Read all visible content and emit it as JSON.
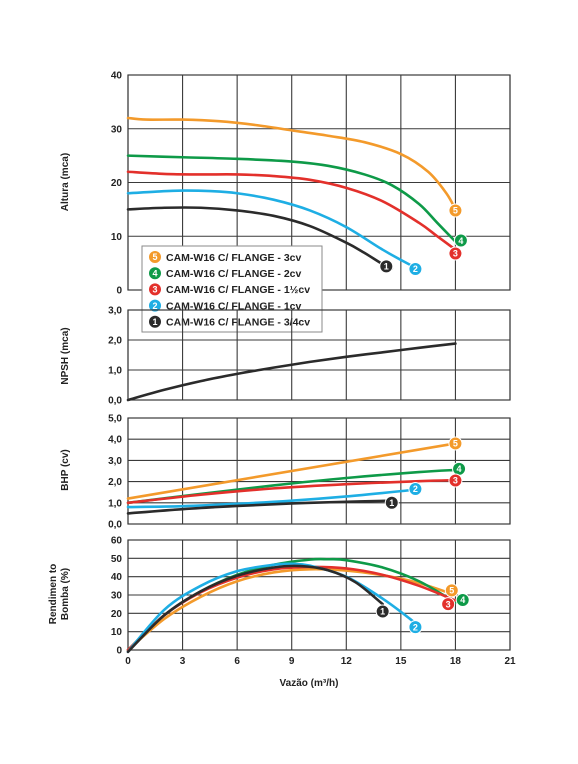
{
  "chart_data": [
    {
      "type": "line",
      "id": "altura",
      "ylabel": "Altura (mca)",
      "xlim": [
        0,
        21
      ],
      "ylim": [
        0,
        40
      ],
      "xticks": [
        0,
        3,
        6,
        9,
        12,
        15,
        18,
        21
      ],
      "yticks": [
        0,
        10,
        20,
        30,
        40
      ],
      "ytick_labels": [
        "0",
        "10",
        "20",
        "30",
        "40"
      ],
      "legend": {
        "placement": "bottom-left",
        "entries": [
          {
            "badge": "5",
            "label": "CAM-W16 C/ FLANGE - 3cv"
          },
          {
            "badge": "4",
            "label": "CAM-W16 C/ FLANGE - 2cv"
          },
          {
            "badge": "3",
            "label": "CAM-W16 C/ FLANGE - 1½cv"
          },
          {
            "badge": "2",
            "label": "CAM-W16 C/ FLANGE - 1cv"
          },
          {
            "badge": "1",
            "label": "CAM-W16 C/ FLANGE - 3/4cv"
          }
        ]
      },
      "series": [
        {
          "badge": "5",
          "color": "#F39A2B",
          "x": [
            0,
            1,
            3,
            5,
            7,
            9,
            11,
            13,
            15,
            16.5,
            17.5,
            18
          ],
          "y": [
            32,
            31.7,
            31.7,
            31.4,
            30.7,
            29.7,
            28.7,
            27.5,
            25.3,
            22,
            18,
            15
          ],
          "label_at": [
            18,
            14.8
          ]
        },
        {
          "badge": "4",
          "color": "#0E9A48",
          "x": [
            0,
            3,
            6,
            9,
            11,
            13,
            14.5,
            16,
            17,
            18
          ],
          "y": [
            25,
            24.7,
            24.4,
            23.9,
            23.1,
            21.5,
            19.5,
            16,
            12.5,
            9
          ],
          "label_at": [
            18.3,
            9.2
          ]
        },
        {
          "badge": "3",
          "color": "#E3302B",
          "x": [
            0,
            2,
            4,
            6,
            8,
            10,
            12,
            14,
            16,
            17,
            18
          ],
          "y": [
            22,
            21.6,
            21.5,
            21.5,
            21.2,
            20.5,
            19,
            16.5,
            12.5,
            10,
            7.5
          ],
          "label_at": [
            18,
            6.8
          ]
        },
        {
          "badge": "2",
          "color": "#1EAEE4",
          "x": [
            0,
            1.5,
            3,
            4.5,
            6,
            8,
            10,
            12,
            14,
            15.5,
            16
          ],
          "y": [
            18,
            18.3,
            18.5,
            18.4,
            18,
            16.8,
            14.8,
            11.7,
            7.5,
            4.7,
            4
          ],
          "label_at": [
            15.8,
            3.9
          ]
        },
        {
          "badge": "1",
          "color": "#2B2B2B",
          "x": [
            0,
            2,
            4,
            6,
            8,
            10,
            12,
            13,
            14,
            14.5
          ],
          "y": [
            15,
            15.3,
            15.3,
            14.8,
            13.8,
            11.9,
            8.8,
            6.9,
            4.8,
            4
          ],
          "label_at": [
            14.2,
            4.4
          ]
        }
      ]
    },
    {
      "type": "line",
      "id": "npsh",
      "ylabel": "NPSH (mca)",
      "xlim": [
        0,
        21
      ],
      "ylim": [
        0,
        3
      ],
      "xticks": [
        0,
        3,
        6,
        9,
        12,
        15,
        18,
        21
      ],
      "yticks": [
        0,
        1,
        2,
        3
      ],
      "ytick_labels": [
        "0,0",
        "1,0",
        "2,0",
        "3,0"
      ],
      "series": [
        {
          "color": "#2B2B2B",
          "x": [
            0,
            2,
            4,
            6,
            8,
            10,
            12,
            14,
            16,
            18
          ],
          "y": [
            0,
            0.34,
            0.63,
            0.87,
            1.08,
            1.27,
            1.44,
            1.59,
            1.74,
            1.88
          ]
        }
      ]
    },
    {
      "type": "line",
      "id": "bhp",
      "ylabel": "BHP (cv)",
      "xlim": [
        0,
        21
      ],
      "ylim": [
        0,
        5
      ],
      "xticks": [
        0,
        3,
        6,
        9,
        12,
        15,
        18,
        21
      ],
      "yticks": [
        0,
        1,
        2,
        3,
        4,
        5
      ],
      "ytick_labels": [
        "0,0",
        "1,0",
        "2,0",
        "3,0",
        "4,0",
        "5,0"
      ],
      "series": [
        {
          "badge": "5",
          "color": "#F39A2B",
          "x": [
            0,
            18
          ],
          "y": [
            1.2,
            3.8
          ],
          "label_at": [
            18,
            3.8
          ]
        },
        {
          "badge": "4",
          "color": "#0E9A48",
          "x": [
            0,
            4,
            8,
            12,
            16,
            18
          ],
          "y": [
            1.0,
            1.42,
            1.82,
            2.17,
            2.45,
            2.55
          ],
          "label_at": [
            18.2,
            2.6
          ]
        },
        {
          "badge": "3",
          "color": "#E3302B",
          "x": [
            0,
            4,
            8,
            12,
            16,
            18
          ],
          "y": [
            1.0,
            1.38,
            1.68,
            1.88,
            2.02,
            2.07
          ],
          "label_at": [
            18,
            2.05
          ]
        },
        {
          "badge": "2",
          "color": "#1EAEE4",
          "x": [
            0,
            3,
            6,
            9,
            12,
            15,
            16
          ],
          "y": [
            0.8,
            0.84,
            0.95,
            1.1,
            1.3,
            1.55,
            1.65
          ],
          "label_at": [
            15.8,
            1.65
          ]
        },
        {
          "badge": "1",
          "color": "#2B2B2B",
          "x": [
            0,
            3,
            6,
            9,
            12,
            14.5
          ],
          "y": [
            0.5,
            0.7,
            0.85,
            0.97,
            1.05,
            1.1
          ],
          "label_at": [
            14.5,
            1.0
          ]
        }
      ]
    },
    {
      "type": "line",
      "id": "rendimento",
      "ylabel": "Rendimen to Bomba (%)",
      "xlabel": "Vazão (m³/h)",
      "xlim": [
        0,
        21
      ],
      "ylim": [
        0,
        60
      ],
      "xticks": [
        0,
        3,
        6,
        9,
        12,
        15,
        18,
        21
      ],
      "xtick_labels": [
        "0",
        "3",
        "6",
        "9",
        "12",
        "15",
        "18",
        "21"
      ],
      "yticks": [
        0,
        10,
        20,
        30,
        40,
        50,
        60
      ],
      "ytick_labels": [
        "0",
        "10",
        "20",
        "30",
        "40",
        "50",
        "60"
      ],
      "series": [
        {
          "badge": "5",
          "color": "#F39A2B",
          "x": [
            0,
            2,
            4,
            6,
            8,
            10,
            12,
            14,
            16,
            18
          ],
          "y": [
            0,
            17,
            29,
            37.5,
            42.3,
            44,
            43.3,
            40.8,
            36.5,
            30
          ],
          "label_at": [
            17.8,
            32.5
          ]
        },
        {
          "badge": "4",
          "color": "#0E9A48",
          "x": [
            0,
            2,
            4,
            6,
            8,
            10,
            11,
            12,
            14,
            16,
            18
          ],
          "y": [
            0,
            19,
            32,
            41,
            46.5,
            49.3,
            49.5,
            49,
            45,
            37.5,
            26
          ],
          "label_at": [
            18.4,
            27.3
          ]
        },
        {
          "badge": "3",
          "color": "#E3302B",
          "x": [
            0,
            2,
            4,
            6,
            8,
            10,
            12,
            14,
            16,
            18
          ],
          "y": [
            0,
            19,
            31.5,
            39.5,
            44,
            45.3,
            44.5,
            41,
            35,
            27
          ],
          "label_at": [
            17.6,
            25
          ]
        },
        {
          "badge": "2",
          "color": "#1EAEE4",
          "x": [
            0,
            2,
            4,
            6,
            8,
            9,
            10,
            12,
            14,
            15.5,
            16
          ],
          "y": [
            -1,
            22,
            35,
            43,
            46.5,
            47,
            46,
            40,
            28,
            17,
            12.5
          ],
          "label_at": [
            15.8,
            12.5
          ]
        },
        {
          "badge": "1",
          "color": "#2B2B2B",
          "x": [
            0,
            2,
            4,
            6,
            8,
            9.5,
            11,
            12.5,
            14
          ],
          "y": [
            -1,
            19,
            32,
            40.5,
            45,
            45.8,
            43.5,
            37,
            25
          ],
          "label_at": [
            14,
            21
          ]
        }
      ]
    }
  ]
}
